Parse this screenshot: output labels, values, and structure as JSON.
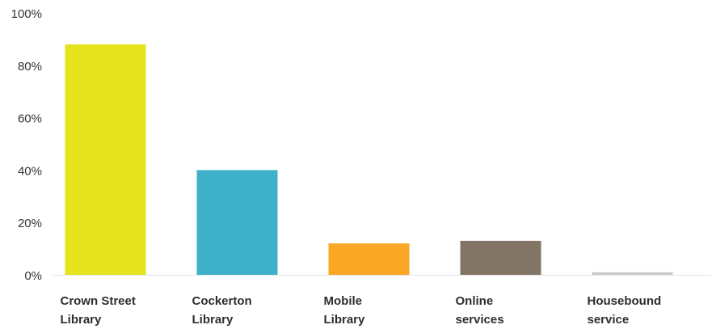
{
  "chart_data": {
    "type": "bar",
    "categories": [
      [
        "Crown Street",
        "Library"
      ],
      [
        "Cockerton",
        "Library"
      ],
      [
        "Mobile",
        "Library"
      ],
      [
        "Online",
        "services"
      ],
      [
        "Housebound",
        "service"
      ]
    ],
    "values": [
      88,
      40,
      12,
      13,
      1
    ],
    "colors": [
      "#e4e31c",
      "#3fb0c9",
      "#fba726",
      "#837566",
      "#c9c9c9"
    ],
    "ylim": [
      0,
      100
    ],
    "yticks": [
      "0%",
      "20%",
      "40%",
      "60%",
      "80%",
      "100%"
    ],
    "ytick_values": [
      0,
      20,
      40,
      60,
      80,
      100
    ],
    "grid": false,
    "legend": "none"
  }
}
